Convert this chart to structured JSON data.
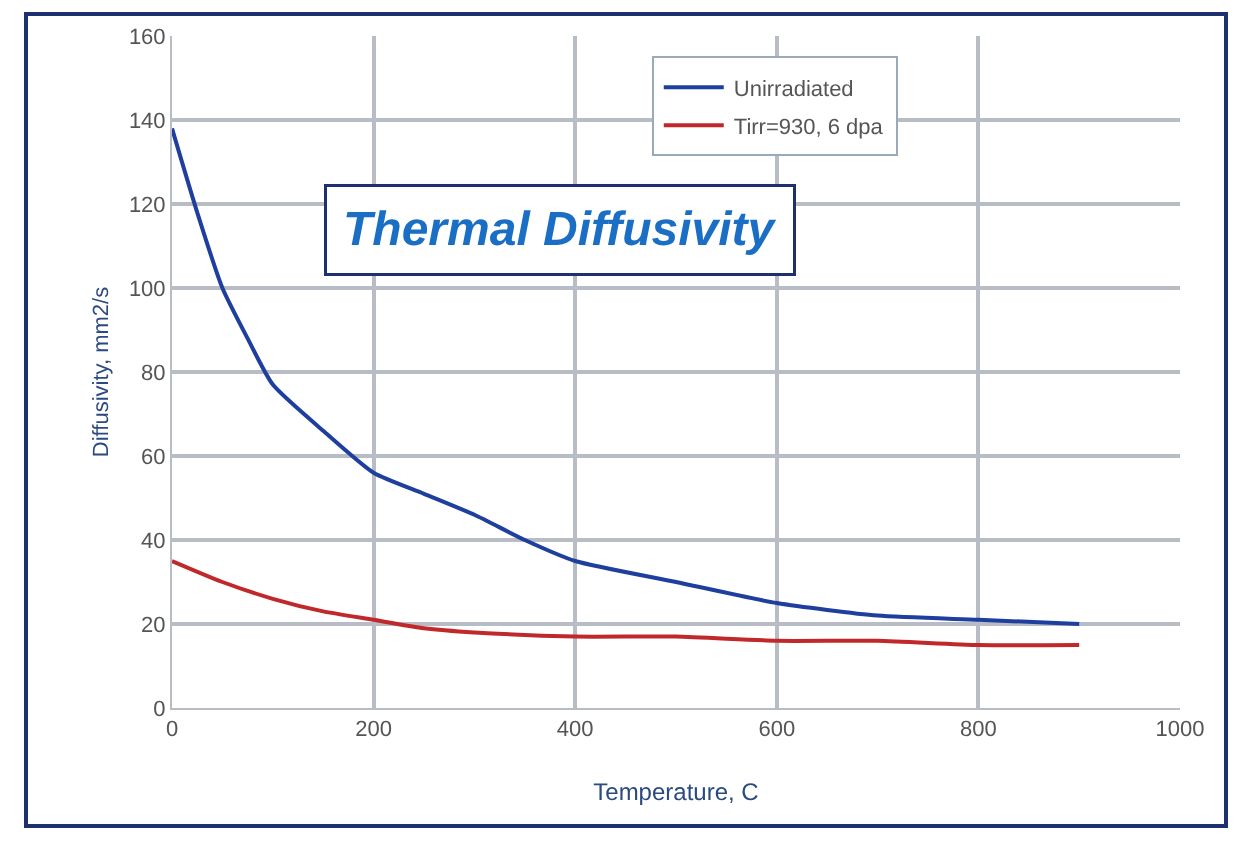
{
  "chart_data": {
    "type": "line",
    "title": "Thermal Diffusivity",
    "xlabel": "Temperature, C",
    "ylabel": "Diffusivity, mm2/s",
    "xlim": [
      0,
      1000
    ],
    "xticks": [
      0,
      200,
      400,
      600,
      800,
      1000
    ],
    "ylim": [
      0,
      160
    ],
    "yticks": [
      0,
      20,
      40,
      60,
      80,
      100,
      120,
      140,
      160
    ],
    "grid": true,
    "legend": "top right",
    "marker": "none",
    "line_style": "solid",
    "series": [
      {
        "name": "Unirradiated",
        "color": "#1f3f9f",
        "x": [
          0,
          25,
          50,
          75,
          100,
          150,
          200,
          250,
          300,
          350,
          400,
          500,
          600,
          700,
          800,
          900
        ],
        "values": [
          138,
          118,
          100,
          88,
          77,
          66,
          56,
          51,
          46,
          40,
          35,
          30,
          25,
          22,
          21,
          20
        ]
      },
      {
        "name": "Tirr=930, 6 dpa",
        "color": "#c0282a",
        "x": [
          0,
          50,
          100,
          150,
          200,
          250,
          300,
          400,
          500,
          600,
          700,
          800,
          900
        ],
        "values": [
          35,
          30,
          26,
          23,
          21,
          19,
          18,
          17,
          17,
          16,
          16,
          15,
          15
        ]
      }
    ]
  }
}
